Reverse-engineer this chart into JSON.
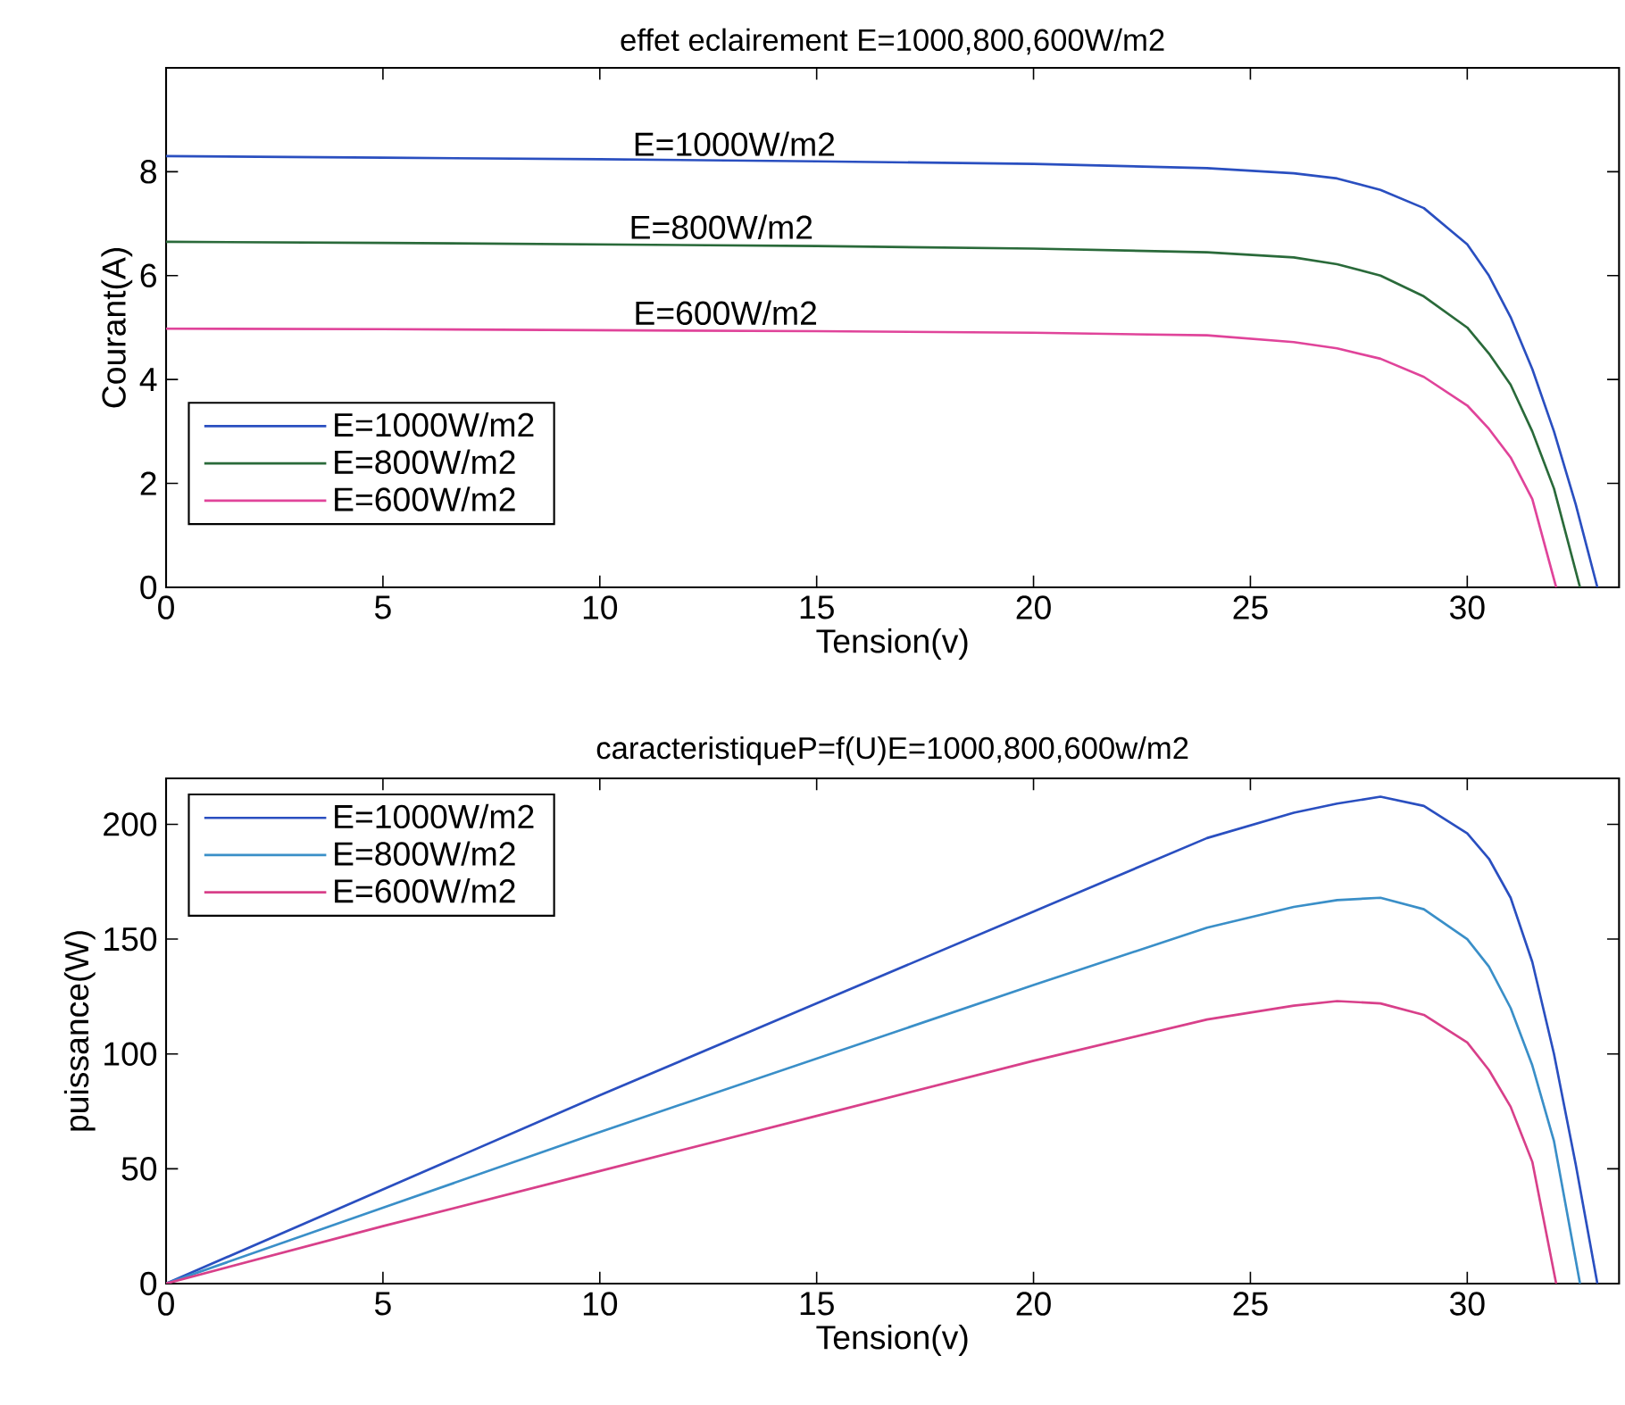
{
  "chart_data": [
    {
      "type": "line",
      "title": "effet eclairement E=1000,800,600W/m2",
      "xlabel": "Tension(v)",
      "ylabel": "Courant(A)",
      "xlim": [
        0,
        33.5
      ],
      "ylim": [
        0,
        10
      ],
      "xticks": [
        0,
        5,
        10,
        15,
        20,
        25,
        30
      ],
      "yticks": [
        0,
        2,
        4,
        6,
        8
      ],
      "legend": "bottom left",
      "series": [
        {
          "name": "E=1000W/m2",
          "color": "#2a4fc0",
          "x": [
            0,
            5,
            10,
            15,
            20,
            24,
            26,
            27,
            28,
            29,
            30,
            30.5,
            31,
            31.5,
            32,
            32.5,
            33
          ],
          "values": [
            8.3,
            8.27,
            8.24,
            8.2,
            8.15,
            8.07,
            7.97,
            7.87,
            7.65,
            7.3,
            6.6,
            6.0,
            5.2,
            4.2,
            3.0,
            1.6,
            0
          ]
        },
        {
          "name": "E=800W/m2",
          "color": "#2a6a3a",
          "x": [
            0,
            5,
            10,
            15,
            20,
            24,
            26,
            27,
            28,
            29,
            30,
            30.5,
            31,
            31.5,
            32,
            32.6
          ],
          "values": [
            6.65,
            6.63,
            6.6,
            6.57,
            6.52,
            6.45,
            6.35,
            6.22,
            6.0,
            5.6,
            5.0,
            4.5,
            3.9,
            3.0,
            1.9,
            0
          ]
        },
        {
          "name": "E=600W/m2",
          "color": "#e0449a",
          "x": [
            0,
            5,
            10,
            15,
            20,
            24,
            26,
            27,
            28,
            29,
            30,
            30.5,
            31,
            31.5,
            32.05
          ],
          "values": [
            4.98,
            4.97,
            4.95,
            4.93,
            4.9,
            4.85,
            4.72,
            4.6,
            4.4,
            4.05,
            3.5,
            3.05,
            2.5,
            1.7,
            0
          ]
        }
      ],
      "annotations": [
        {
          "text": "E=1000W/m2",
          "x": 13.1,
          "y": 8.2
        },
        {
          "text": "E=800W/m2",
          "x": 12.8,
          "y": 6.6
        },
        {
          "text": "E=600W/m2",
          "x": 12.9,
          "y": 4.95
        }
      ]
    },
    {
      "type": "line",
      "title": "caracteristiqueP=f(U)E=1000,800,600w/m2",
      "xlabel": "Tension(v)",
      "ylabel": "puissance(W)",
      "xlim": [
        0,
        33.5
      ],
      "ylim": [
        0,
        220
      ],
      "xticks": [
        0,
        5,
        10,
        15,
        20,
        25,
        30
      ],
      "yticks": [
        0,
        50,
        100,
        150,
        200
      ],
      "legend": "top left",
      "series": [
        {
          "name": "E=1000W/m2",
          "color": "#2a4fc0",
          "x": [
            0,
            5,
            10,
            15,
            20,
            24,
            26,
            27,
            28,
            29,
            30,
            30.5,
            31,
            31.5,
            32,
            32.5,
            33
          ],
          "values": [
            0,
            41,
            82,
            122,
            162,
            194,
            205,
            209,
            212,
            208,
            196,
            185,
            168,
            140,
            100,
            52,
            0
          ]
        },
        {
          "name": "E=800W/m2",
          "color": "#3a8fc8",
          "x": [
            0,
            5,
            10,
            15,
            20,
            24,
            26,
            27,
            28,
            29,
            30,
            30.5,
            31,
            31.5,
            32,
            32.6
          ],
          "values": [
            0,
            33,
            66,
            98,
            130,
            155,
            164,
            167,
            168,
            163,
            150,
            138,
            120,
            95,
            62,
            0
          ]
        },
        {
          "name": "E=600W/m2",
          "color": "#d8408a",
          "x": [
            0,
            5,
            10,
            15,
            20,
            24,
            26,
            27,
            28,
            29,
            30,
            30.5,
            31,
            31.5,
            32.05
          ],
          "values": [
            0,
            25,
            49,
            73,
            97,
            115,
            121,
            123,
            122,
            117,
            105,
            93,
            77,
            53,
            0
          ]
        }
      ]
    }
  ]
}
